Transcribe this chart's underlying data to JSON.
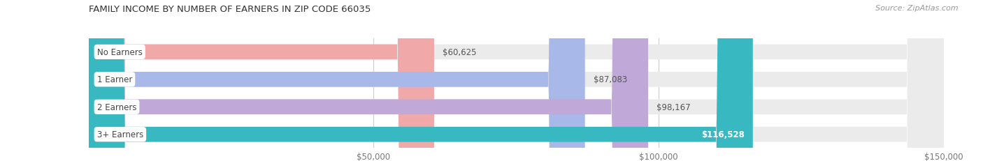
{
  "title": "FAMILY INCOME BY NUMBER OF EARNERS IN ZIP CODE 66035",
  "source": "Source: ZipAtlas.com",
  "categories": [
    "No Earners",
    "1 Earner",
    "2 Earners",
    "3+ Earners"
  ],
  "values": [
    60625,
    87083,
    98167,
    116528
  ],
  "bar_colors": [
    "#f0a8a8",
    "#a8b8e8",
    "#c0a8d8",
    "#38b8c0"
  ],
  "label_colors": [
    "#555555",
    "#555555",
    "#555555",
    "#ffffff"
  ],
  "background_color": "#ffffff",
  "bar_bg_color": "#ebebeb",
  "xlim_data": [
    0,
    150000
  ],
  "xticks": [
    50000,
    100000,
    150000
  ],
  "xtick_labels": [
    "$50,000",
    "$100,000",
    "$150,000"
  ],
  "figsize": [
    14.06,
    2.32
  ],
  "dpi": 100
}
